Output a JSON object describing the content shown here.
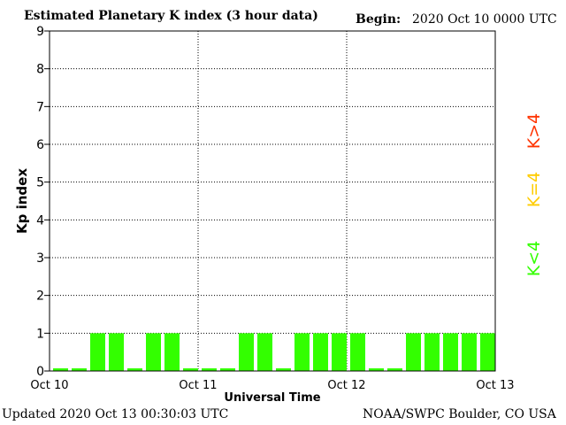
{
  "header": {
    "title": "Estimated Planetary K index (3 hour data)",
    "begin_label": "Begin:",
    "begin_value": "2020 Oct 10 0000 UTC"
  },
  "footer": {
    "updated": "Updated 2020 Oct 13 00:30:03 UTC",
    "source": "NOAA/SWPC Boulder, CO USA"
  },
  "legend": {
    "high": "K>4",
    "equal": "K=4",
    "low": "K<4",
    "colors": {
      "high": "#ff3300",
      "equal": "#ffcc00",
      "low": "#33ff00"
    }
  },
  "chart_data": {
    "type": "bar",
    "title": "Estimated Planetary K index (3 hour data)",
    "xlabel": "Universal Time",
    "ylabel": "Kp index",
    "ylim": [
      0,
      9
    ],
    "yticks": [
      "0",
      "1",
      "2",
      "3",
      "4",
      "5",
      "6",
      "7",
      "8",
      "9"
    ],
    "xticks": [
      "Oct 10",
      "Oct 11",
      "Oct 12",
      "Oct 13"
    ],
    "grid": true,
    "bar_color": "#33ff00",
    "values": [
      0,
      0,
      1,
      1,
      0,
      1,
      1,
      0,
      0,
      0,
      1,
      1,
      0,
      1,
      1,
      1,
      1,
      0,
      0,
      1,
      1,
      1,
      1,
      1
    ]
  }
}
